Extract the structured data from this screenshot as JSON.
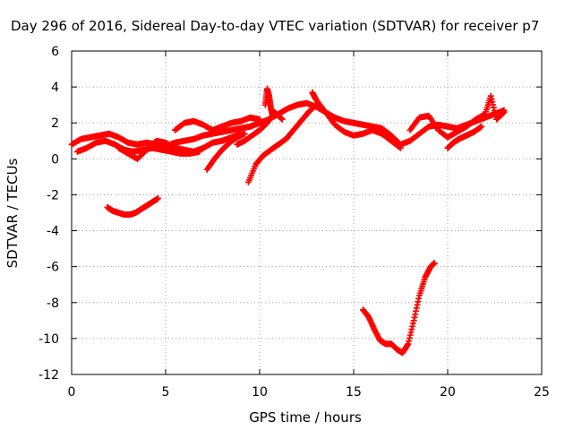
{
  "chart_data": {
    "type": "scatter",
    "title": "Day 296 of 2016, Sidereal Day-to-day VTEC variation (SDTVAR) for receiver p7",
    "xlabel": "GPS time / hours",
    "ylabel": "SDTVAR / TECUs",
    "xlim": [
      0,
      25
    ],
    "ylim": [
      -12,
      6
    ],
    "xticks": [
      0,
      5,
      10,
      15,
      20,
      25
    ],
    "yticks": [
      -12,
      -10,
      -8,
      -6,
      -4,
      -2,
      0,
      2,
      4,
      6
    ],
    "grid": true,
    "marker": "+",
    "color": "#ff0000",
    "series": [
      {
        "name": "track-main",
        "x": [
          0.0,
          0.5,
          1.0,
          1.5,
          2.0,
          2.5,
          3.0,
          3.5,
          4.0,
          4.5,
          5.0,
          5.5,
          6.0,
          6.5,
          7.0,
          7.5,
          8.0,
          8.5,
          9.0,
          9.5,
          10.0,
          10.5,
          11.0,
          11.5,
          12.0,
          12.5,
          13.0,
          13.5,
          14.0,
          14.5,
          15.0,
          15.5,
          16.0,
          16.5,
          17.0,
          17.5,
          18.0,
          18.5,
          19.0,
          19.5,
          20.0,
          20.5,
          21.0,
          21.5,
          22.0,
          22.5,
          23.0
        ],
        "y": [
          0.8,
          1.1,
          1.2,
          1.3,
          1.4,
          1.2,
          0.9,
          0.8,
          0.9,
          0.8,
          0.7,
          0.9,
          1.0,
          1.1,
          1.3,
          1.4,
          1.5,
          1.6,
          1.7,
          1.8,
          2.0,
          2.2,
          2.5,
          2.8,
          3.0,
          3.1,
          2.9,
          2.6,
          2.3,
          2.1,
          2.0,
          1.9,
          1.8,
          1.7,
          1.3,
          0.8,
          1.0,
          1.4,
          1.8,
          1.9,
          1.8,
          1.7,
          1.9,
          2.1,
          2.3,
          2.5,
          2.7
        ]
      },
      {
        "name": "track-low-2",
        "x": [
          0.3,
          0.8,
          1.3,
          1.8,
          2.3,
          2.8,
          3.3,
          3.8,
          4.3,
          4.8,
          5.3,
          5.8,
          6.3,
          6.8
        ],
        "y": [
          0.4,
          0.6,
          0.9,
          1.0,
          0.8,
          0.5,
          0.4,
          0.5,
          0.6,
          0.5,
          0.4,
          0.3,
          0.3,
          0.4
        ]
      },
      {
        "name": "track-wave",
        "x": [
          2.5,
          3.0,
          3.5,
          4.0,
          4.5,
          5.0,
          5.5,
          6.0,
          6.5,
          7.0,
          7.5,
          8.0,
          8.5,
          9.0
        ],
        "y": [
          0.6,
          0.3,
          0.0,
          0.5,
          1.0,
          0.9,
          0.6,
          0.5,
          0.4,
          0.6,
          0.9,
          1.0,
          1.2,
          1.4
        ]
      },
      {
        "name": "track-upper-mid",
        "x": [
          5.5,
          6.0,
          6.5,
          7.0,
          7.5,
          8.0,
          8.5,
          9.0,
          9.5,
          10.0
        ],
        "y": [
          1.6,
          2.0,
          2.1,
          1.9,
          1.6,
          1.8,
          2.0,
          2.1,
          2.3,
          2.2
        ]
      },
      {
        "name": "track-rise-a",
        "x": [
          7.2,
          7.6,
          8.0,
          8.4,
          8.8,
          9.2
        ],
        "y": [
          -0.6,
          0.0,
          0.5,
          0.9,
          1.2,
          1.4
        ]
      },
      {
        "name": "track-rise-b",
        "x": [
          9.4,
          9.8,
          10.2,
          10.6,
          11.0,
          11.4,
          11.8,
          12.2,
          12.6,
          13.0
        ],
        "y": [
          -1.3,
          -0.3,
          0.2,
          0.5,
          0.8,
          1.1,
          1.6,
          2.1,
          2.6,
          3.0
        ]
      },
      {
        "name": "track-dip",
        "x": [
          8.8,
          9.2,
          9.6,
          10.0,
          10.4,
          10.8,
          11.2
        ],
        "y": [
          0.8,
          1.0,
          1.3,
          1.6,
          2.0,
          2.6,
          2.2
        ]
      },
      {
        "name": "track-spike",
        "x": [
          10.3,
          10.4,
          10.5,
          10.6,
          10.7
        ],
        "y": [
          3.0,
          3.9,
          3.5,
          2.8,
          2.4
        ]
      },
      {
        "name": "track-hump",
        "x": [
          12.8,
          13.0,
          13.5,
          14.0,
          14.5,
          15.0,
          15.5,
          16.0,
          16.5,
          17.0,
          17.5
        ],
        "y": [
          3.7,
          3.3,
          2.6,
          1.9,
          1.5,
          1.3,
          1.4,
          1.6,
          1.4,
          1.0,
          0.6
        ]
      },
      {
        "name": "track-upper-right",
        "x": [
          18.0,
          18.5,
          19.0,
          19.5,
          20.0,
          20.5,
          21.0,
          21.5,
          22.0,
          22.3,
          22.6,
          23.0
        ],
        "y": [
          1.6,
          2.3,
          2.4,
          1.6,
          1.2,
          1.5,
          1.8,
          2.2,
          2.5,
          3.5,
          2.2,
          2.6
        ]
      },
      {
        "name": "track-drop",
        "x": [
          20.0,
          20.3,
          20.6,
          21.0,
          21.4,
          21.8
        ],
        "y": [
          0.6,
          0.9,
          1.1,
          1.3,
          1.5,
          1.8
        ]
      },
      {
        "name": "track-negative-arc",
        "x": [
          1.9,
          2.2,
          2.5,
          2.8,
          3.1,
          3.4,
          3.7,
          4.0,
          4.3,
          4.6
        ],
        "y": [
          -2.7,
          -2.9,
          -3.0,
          -3.1,
          -3.1,
          -3.0,
          -2.8,
          -2.6,
          -2.4,
          -2.2
        ]
      },
      {
        "name": "track-deep-dip",
        "x": [
          15.5,
          15.8,
          16.1,
          16.4,
          16.7,
          17.0,
          17.3,
          17.6,
          17.9,
          18.2,
          18.5,
          18.8,
          19.1,
          19.3
        ],
        "y": [
          -8.4,
          -8.8,
          -9.5,
          -10.1,
          -10.3,
          -10.3,
          -10.6,
          -10.8,
          -10.3,
          -9.0,
          -7.6,
          -6.6,
          -6.0,
          -5.8
        ]
      }
    ]
  }
}
